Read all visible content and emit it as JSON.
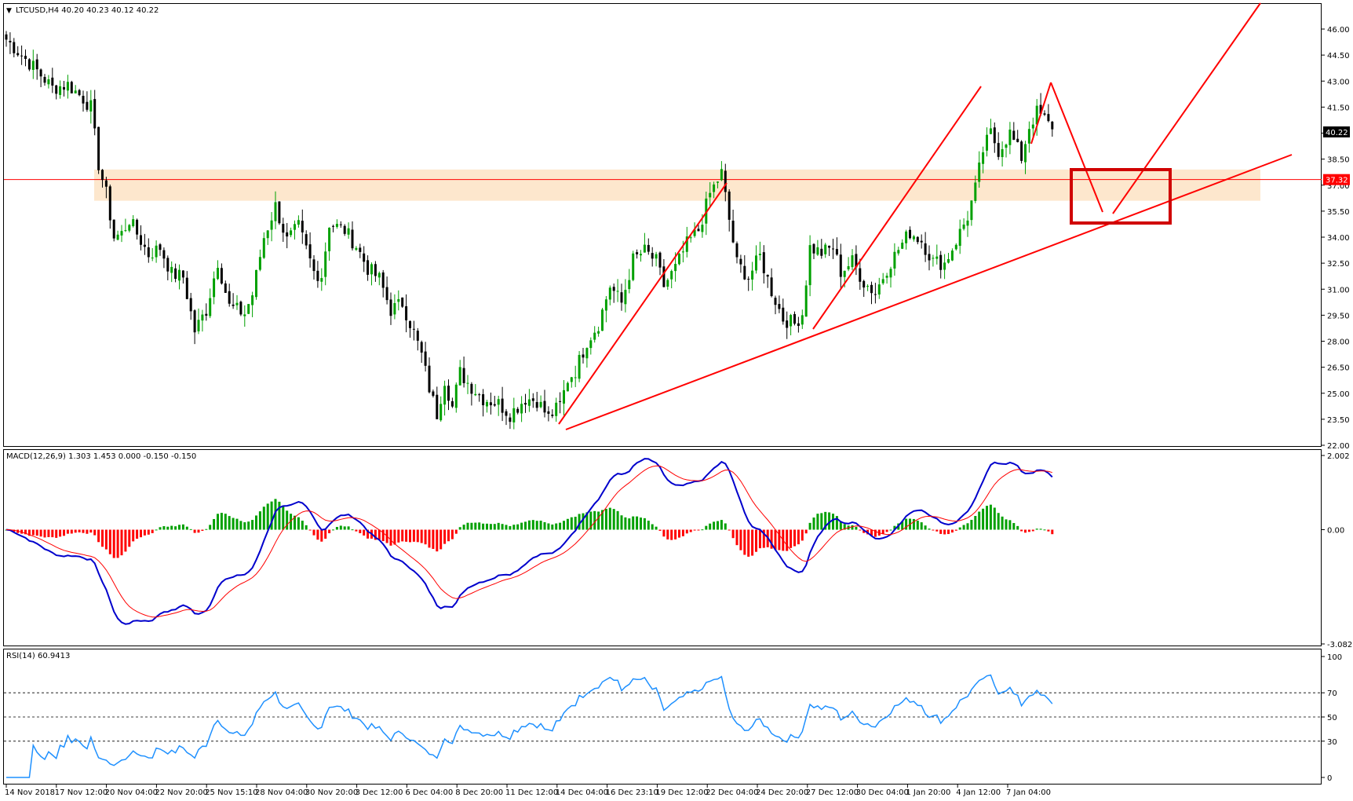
{
  "panels": {
    "main": {
      "header": "LTCUSD,H4  40.20 40.23 40.12 40.22"
    },
    "macd": {
      "header": "MACD(12,26,9) 1.303 1.453 0.000 -0.150 -0.150"
    },
    "rsi": {
      "header": "RSI(14) 60.9413"
    }
  },
  "price_axis": {
    "ticks": [
      "46.00",
      "44.50",
      "43.00",
      "41.50",
      "40.00",
      "38.50",
      "37.00",
      "35.50",
      "34.00",
      "32.50",
      "31.00",
      "29.50",
      "28.00",
      "26.50",
      "25.00",
      "23.50",
      "22.00"
    ],
    "current_price_label": "40.22",
    "level_label": "37.32"
  },
  "macd_axis": {
    "ticks": [
      "2.002",
      "0.00",
      "-3.082"
    ]
  },
  "rsi_axis": {
    "ticks": [
      "100",
      "70",
      "50",
      "30",
      "0"
    ]
  },
  "time_axis": {
    "labels": [
      "14 Nov 2018",
      "17 Nov 12:00",
      "20 Nov 04:00",
      "22 Nov 20:00",
      "25 Nov 15:10",
      "28 Nov 04:00",
      "30 Nov 20:00",
      "3 Dec 12:00",
      "6 Dec 04:00",
      "8 Dec 20:00",
      "11 Dec 12:00",
      "14 Dec 04:00",
      "16 Dec 23:10",
      "19 Dec 12:00",
      "22 Dec 04:00",
      "24 Dec 20:00",
      "27 Dec 12:00",
      "30 Dec 04:00",
      "1 Jan 20:00",
      "4 Jan 12:00",
      "7 Jan 04:00"
    ]
  },
  "colors": {
    "bull_candle": "#00a000",
    "bear_candle": "#000000",
    "resistance_zone": "#fde3c4",
    "drawing_red": "#ff0000",
    "macd_line": "#0000cc",
    "signal_line": "#ff0000",
    "rsi_line": "#1e90ff"
  },
  "chart_data": [
    {
      "type": "candlestick",
      "symbol": "LTCUSD",
      "timeframe": "H4",
      "ohlc_last": {
        "open": 40.2,
        "high": 40.23,
        "low": 40.12,
        "close": 40.22
      },
      "ylim": [
        22.0,
        46.6
      ],
      "horizontal_level": 37.32,
      "resistance_zone": [
        36.1,
        37.9
      ],
      "close_path": [
        [
          0,
          45.4
        ],
        [
          4,
          44.5
        ],
        [
          8,
          43.6
        ],
        [
          12,
          42.6
        ],
        [
          16,
          42.8
        ],
        [
          20,
          42.0
        ],
        [
          22,
          41.5
        ],
        [
          24,
          38.2
        ],
        [
          26,
          36.5
        ],
        [
          28,
          34.0
        ],
        [
          30,
          34.2
        ],
        [
          32,
          35.0
        ],
        [
          34,
          34.2
        ],
        [
          37,
          33.0
        ],
        [
          40,
          33.4
        ],
        [
          43,
          31.9
        ],
        [
          46,
          31.7
        ],
        [
          49,
          28.6
        ],
        [
          52,
          29.8
        ],
        [
          55,
          32.6
        ],
        [
          58,
          30.0
        ],
        [
          62,
          29.6
        ],
        [
          64,
          30.7
        ],
        [
          67,
          34.0
        ],
        [
          70,
          35.8
        ],
        [
          73,
          33.8
        ],
        [
          76,
          34.6
        ],
        [
          80,
          32.0
        ],
        [
          82,
          31.8
        ],
        [
          84,
          34.8
        ],
        [
          88,
          34.4
        ],
        [
          91,
          33.5
        ],
        [
          94,
          32.2
        ],
        [
          97,
          31.6
        ],
        [
          100,
          29.8
        ],
        [
          103,
          30.2
        ],
        [
          106,
          28.5
        ],
        [
          108,
          27.2
        ],
        [
          110,
          25.3
        ],
        [
          112,
          23.8
        ],
        [
          114,
          25.8
        ],
        [
          116,
          24.2
        ],
        [
          118,
          26.2
        ],
        [
          120,
          25.6
        ],
        [
          124,
          24.7
        ],
        [
          128,
          24.4
        ],
        [
          131,
          23.8
        ],
        [
          135,
          24.7
        ],
        [
          138,
          24.6
        ],
        [
          141,
          23.6
        ],
        [
          144,
          24.3
        ],
        [
          146,
          25.8
        ],
        [
          148,
          26.3
        ],
        [
          151,
          28.0
        ],
        [
          154,
          29.0
        ],
        [
          157,
          31.2
        ],
        [
          160,
          30.2
        ],
        [
          163,
          32.7
        ],
        [
          166,
          33.2
        ],
        [
          169,
          32.6
        ],
        [
          171,
          31.2
        ],
        [
          174,
          32.2
        ],
        [
          177,
          33.6
        ],
        [
          180,
          34.4
        ],
        [
          183,
          36.5
        ],
        [
          186,
          37.7
        ],
        [
          188,
          35.0
        ],
        [
          190,
          32.5
        ],
        [
          193,
          31.7
        ],
        [
          196,
          32.9
        ],
        [
          199,
          30.9
        ],
        [
          202,
          29.3
        ],
        [
          205,
          29.0
        ],
        [
          207,
          29.6
        ],
        [
          209,
          33.4
        ],
        [
          212,
          33.1
        ],
        [
          215,
          33.4
        ],
        [
          217,
          32.0
        ],
        [
          220,
          32.6
        ],
        [
          223,
          31.4
        ],
        [
          226,
          30.8
        ],
        [
          229,
          32.2
        ],
        [
          232,
          33.3
        ],
        [
          235,
          34.3
        ],
        [
          238,
          33.8
        ],
        [
          241,
          32.6
        ],
        [
          244,
          32.5
        ],
        [
          247,
          33.8
        ],
        [
          250,
          35.2
        ],
        [
          252,
          36.8
        ],
        [
          254,
          39.0
        ],
        [
          256,
          40.0
        ],
        [
          258,
          39.0
        ],
        [
          261,
          40.0
        ],
        [
          264,
          38.6
        ],
        [
          266,
          40.4
        ],
        [
          268,
          41.2
        ],
        [
          270,
          40.8
        ],
        [
          272,
          40.22
        ]
      ]
    },
    {
      "type": "macd",
      "params": [
        12,
        26,
        9
      ],
      "values": {
        "main": 1.303,
        "signal": 1.453,
        "histogram": -0.15
      },
      "ylim": [
        -3.082,
        2.002
      ]
    },
    {
      "type": "rsi",
      "period": 14,
      "value": 60.9413,
      "levels": [
        70,
        50,
        30
      ],
      "ylim": [
        0,
        100
      ]
    }
  ]
}
